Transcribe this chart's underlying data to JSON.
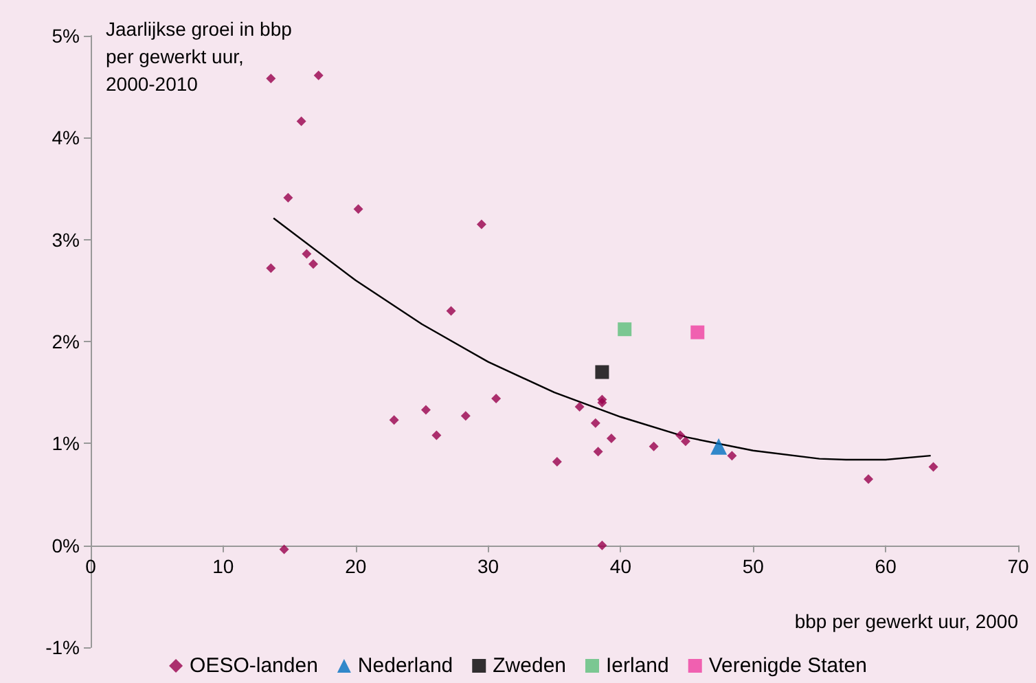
{
  "chart_data": {
    "type": "scatter",
    "ylabel": "Jaarlijkse groei in bbp per gewerkt uur, 2000-2010",
    "xlabel": "bbp per gewerkt uur, 2000",
    "xlim": [
      0,
      70
    ],
    "xticks": [
      0,
      10,
      20,
      30,
      40,
      50,
      60,
      70
    ],
    "ylim": [
      -1,
      5
    ],
    "yticks": [
      {
        "value": -1,
        "label": "-1%"
      },
      {
        "value": 0,
        "label": "0%"
      },
      {
        "value": 1,
        "label": "1%"
      },
      {
        "value": 2,
        "label": "2%"
      },
      {
        "value": 3,
        "label": "3%"
      },
      {
        "value": 4,
        "label": "4%"
      },
      {
        "value": 5,
        "label": "5%"
      }
    ],
    "grid": false,
    "legend": "bottom",
    "series": [
      {
        "name": "OESO-landen",
        "color": "#99004c",
        "marker": "diamond",
        "x": [
          13.6,
          17.2,
          15.9,
          14.9,
          20.2,
          29.5,
          13.6,
          16.3,
          16.8,
          27.2,
          22.9,
          25.3,
          26.1,
          28.3,
          30.6,
          14.6,
          36.9,
          38.1,
          38.6,
          38.6,
          35.2,
          38.3,
          39.3,
          42.5,
          44.5,
          44.9,
          48.4,
          58.7,
          63.6,
          38.6
        ],
        "values": [
          4.58,
          4.61,
          4.16,
          3.41,
          3.3,
          3.15,
          2.72,
          2.86,
          2.76,
          2.3,
          1.23,
          1.33,
          1.08,
          1.27,
          1.44,
          -0.04,
          1.36,
          1.2,
          1.43,
          1.4,
          0.82,
          0.92,
          1.05,
          0.97,
          1.08,
          1.02,
          0.88,
          0.65,
          0.77,
          0.0
        ]
      },
      {
        "name": "Nederland",
        "color": "#0070c0",
        "marker": "triangle",
        "x": [
          47.4
        ],
        "values": [
          0.97
        ]
      },
      {
        "name": "Zweden",
        "color": "#000000",
        "marker": "square",
        "x": [
          38.6
        ],
        "values": [
          1.7
        ]
      },
      {
        "name": "Ierland",
        "color": "#5cbf7a",
        "marker": "square",
        "x": [
          40.3
        ],
        "values": [
          2.12
        ]
      },
      {
        "name": "Verenigde Staten",
        "color": "#ef3fa0",
        "marker": "square",
        "x": [
          45.8
        ],
        "values": [
          2.09
        ]
      },
      {
        "type": "line",
        "color": "#000000",
        "marker": "none",
        "line_style": "solid",
        "x": [
          13.8,
          20,
          25,
          30,
          35,
          40,
          45,
          50,
          55,
          57,
          60,
          63.4
        ],
        "values": [
          3.21,
          2.6,
          2.17,
          1.8,
          1.5,
          1.26,
          1.06,
          0.93,
          0.85,
          0.84,
          0.84,
          0.88
        ]
      }
    ]
  }
}
